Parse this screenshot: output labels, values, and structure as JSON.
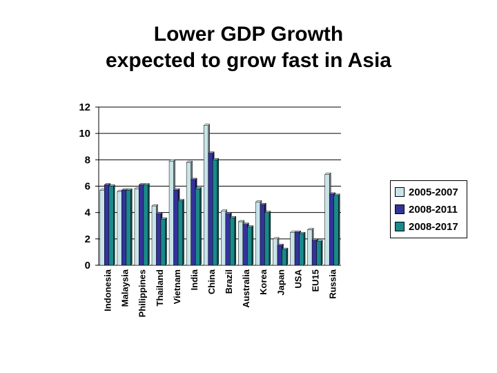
{
  "chart_data": {
    "type": "bar",
    "title_lines": [
      "Lower GDP Growth",
      "expected to grow fast in Asia"
    ],
    "categories": [
      "Indonesia",
      "Malaysia",
      "Philippines",
      "Thailand",
      "Vietnam",
      "India",
      "China",
      "Brazil",
      "Australia",
      "Korea",
      "Japan",
      "USA",
      "EU15",
      "Russia"
    ],
    "series": [
      {
        "name": "2005-2007",
        "color": "#c8e4e8",
        "values": [
          5.7,
          5.6,
          5.8,
          4.5,
          7.9,
          7.8,
          10.6,
          4.1,
          3.3,
          4.8,
          2.0,
          2.5,
          2.7,
          6.9
        ]
      },
      {
        "name": "2008-2011",
        "color": "#33339a",
        "values": [
          6.1,
          5.7,
          6.1,
          3.9,
          5.7,
          6.5,
          8.5,
          3.9,
          3.1,
          4.6,
          1.5,
          2.5,
          1.9,
          5.4
        ]
      },
      {
        "name": "2008-2017",
        "color": "#1a8a8a",
        "values": [
          6.0,
          5.7,
          6.1,
          3.5,
          4.9,
          5.8,
          8.0,
          3.6,
          2.9,
          4.0,
          1.2,
          2.4,
          1.8,
          5.3
        ]
      }
    ],
    "ylim": [
      0,
      12
    ],
    "yticks": [
      "0",
      "2",
      "4",
      "6",
      "8",
      "10",
      "12"
    ],
    "grid": true,
    "legend_position": "right",
    "style": "3d-bars"
  }
}
